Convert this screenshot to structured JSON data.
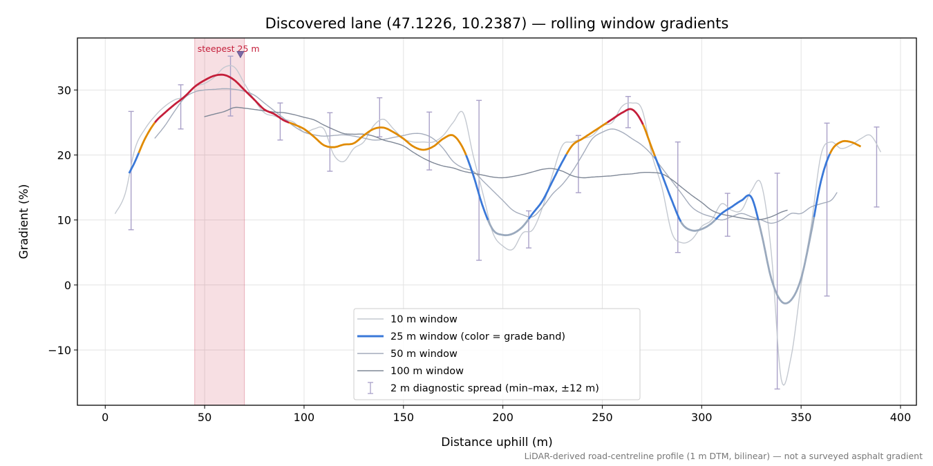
{
  "chart_data": {
    "type": "line",
    "title": "Discovered lane (47.1226, 10.2387) — rolling window gradients",
    "xlabel": "Distance uphill (m)",
    "ylabel": "Gradient (%)",
    "xlim": [
      -14,
      408
    ],
    "ylim": [
      -18.5,
      38
    ],
    "xticks": [
      0,
      50,
      100,
      150,
      200,
      250,
      300,
      350,
      400
    ],
    "yticks": [
      -10,
      0,
      10,
      20,
      30
    ],
    "xtick_labels": [
      "0",
      "50",
      "100",
      "150",
      "200",
      "250",
      "300",
      "350",
      "400"
    ],
    "ytick_labels": [
      "−10",
      "0",
      "10",
      "20",
      "30"
    ],
    "grid": true,
    "legend_position": "lower center",
    "footnote": "LiDAR-derived road-centreline profile (1 m DTM, bilinear) — not a surveyed asphalt gradient",
    "highlight": {
      "x_start": 45,
      "x_end": 70,
      "label": "steepest 25 m",
      "marker_x": 68,
      "marker_y": 35.5
    },
    "grade_bands": [
      {
        "min": 0,
        "max": 10,
        "color": "#9aa9bd"
      },
      {
        "min": 10,
        "max": 20,
        "color": "#3a78d8"
      },
      {
        "min": 20,
        "max": 25,
        "color": "#e08a00"
      },
      {
        "min": 25,
        "max": 100,
        "color": "#c41e3a"
      }
    ],
    "series": [
      {
        "name": "10 m window",
        "color": "#c3c8d0",
        "width": 1.4,
        "x": [
          5,
          10,
          15,
          20,
          25,
          30,
          35,
          40,
          45,
          50,
          55,
          60,
          65,
          70,
          75,
          80,
          85,
          90,
          95,
          100,
          105,
          110,
          115,
          120,
          125,
          130,
          135,
          140,
          145,
          150,
          155,
          160,
          165,
          170,
          175,
          180,
          185,
          190,
          195,
          200,
          205,
          210,
          215,
          220,
          225,
          230,
          235,
          240,
          245,
          250,
          255,
          260,
          265,
          270,
          275,
          280,
          285,
          290,
          295,
          300,
          305,
          310,
          315,
          320,
          325,
          330,
          335,
          340,
          345,
          350,
          355,
          360,
          365,
          370,
          375,
          380,
          385,
          390
        ],
        "y": [
          11,
          14,
          21,
          24,
          26,
          27.5,
          28.5,
          29,
          30.5,
          31,
          32,
          33.5,
          33.5,
          31,
          28.5,
          26.5,
          26,
          25.5,
          25,
          23.5,
          24,
          24,
          20,
          19,
          21,
          22,
          24.5,
          25.5,
          24,
          22.5,
          22,
          22,
          22,
          23,
          25,
          26.5,
          20,
          14,
          8,
          6,
          5.5,
          8,
          8.5,
          12,
          17,
          21.5,
          22,
          22.5,
          23,
          24.5,
          25,
          27.5,
          28,
          27,
          20,
          15,
          8,
          6.5,
          7,
          9,
          10,
          12.5,
          11.5,
          11.5,
          14.5,
          15.5,
          5,
          -14.5,
          -11,
          0,
          9,
          20,
          22,
          21,
          21.5,
          22.5,
          23,
          20.5
        ]
      },
      {
        "name": "25 m window (color = grade band)",
        "color": "#3a78d8",
        "width": 2.8,
        "x": [
          12,
          15,
          20,
          25,
          30,
          35,
          40,
          45,
          50,
          55,
          60,
          65,
          70,
          75,
          80,
          85,
          90,
          95,
          100,
          105,
          110,
          115,
          120,
          125,
          130,
          135,
          140,
          145,
          150,
          155,
          160,
          165,
          170,
          175,
          180,
          185,
          190,
          195,
          200,
          205,
          210,
          215,
          220,
          225,
          230,
          235,
          240,
          245,
          250,
          255,
          260,
          265,
          270,
          275,
          280,
          285,
          290,
          295,
          300,
          305,
          310,
          315,
          320,
          325,
          330,
          335,
          340,
          345,
          350,
          355,
          360,
          365,
          370,
          375,
          380
        ],
        "y": [
          17.2,
          19,
          22.5,
          25,
          26.5,
          27.8,
          29,
          30.5,
          31.5,
          32.2,
          32.3,
          31.5,
          30,
          28.5,
          27,
          26.3,
          25.3,
          24.7,
          24,
          22.8,
          21.5,
          21.2,
          21.6,
          21.8,
          23,
          24,
          24.2,
          23.5,
          22.5,
          21.3,
          20.8,
          21.3,
          22.5,
          23,
          21,
          17,
          12,
          8.5,
          7.7,
          7.9,
          9,
          11,
          13,
          16,
          19,
          21.5,
          22.5,
          23.5,
          24.5,
          25.5,
          26.5,
          27,
          25,
          21,
          17,
          13,
          9.5,
          8.4,
          8.6,
          9.5,
          11,
          12,
          13,
          13.5,
          8,
          1,
          -2.5,
          -2.3,
          1,
          8,
          16,
          20.5,
          22,
          22,
          21.3
        ]
      },
      {
        "name": "50 m window",
        "color": "#a4acbc",
        "width": 1.4,
        "x": [
          25,
          30,
          35,
          40,
          45,
          50,
          55,
          60,
          65,
          70,
          75,
          80,
          85,
          90,
          95,
          100,
          105,
          110,
          115,
          120,
          125,
          130,
          135,
          140,
          145,
          150,
          155,
          160,
          165,
          170,
          175,
          180,
          185,
          190,
          195,
          200,
          205,
          210,
          215,
          220,
          225,
          230,
          235,
          240,
          245,
          250,
          255,
          260,
          265,
          270,
          275,
          280,
          285,
          290,
          295,
          300,
          305,
          310,
          315,
          320,
          325,
          330,
          335,
          340,
          345,
          350,
          355,
          360,
          365,
          368
        ],
        "y": [
          22.6,
          24.5,
          26.8,
          28.8,
          29.7,
          30,
          30.1,
          30.2,
          30.1,
          29.8,
          29.2,
          28,
          26.8,
          25.6,
          24.4,
          23.5,
          23.1,
          22.9,
          23,
          23.1,
          22.9,
          22.6,
          22.3,
          22.4,
          22.7,
          23,
          23.3,
          23.2,
          22.5,
          21,
          19,
          18,
          17.5,
          16,
          14.5,
          13,
          11.5,
          10.8,
          10.5,
          12,
          14,
          15.5,
          17.5,
          20,
          22.5,
          23.5,
          24,
          23.5,
          22.5,
          21.5,
          20,
          18,
          16,
          14,
          12,
          11,
          10.5,
          10,
          10.5,
          11,
          10.5,
          10,
          9.5,
          10,
          11,
          11,
          12,
          12.5,
          13,
          14.2
        ]
      },
      {
        "name": "100 m window",
        "color": "#7e8796",
        "width": 1.4,
        "x": [
          50,
          55,
          60,
          65,
          70,
          75,
          80,
          85,
          90,
          95,
          100,
          105,
          110,
          115,
          120,
          125,
          130,
          135,
          140,
          145,
          150,
          155,
          160,
          165,
          170,
          175,
          180,
          185,
          190,
          195,
          200,
          205,
          210,
          215,
          220,
          225,
          230,
          235,
          240,
          245,
          250,
          255,
          260,
          265,
          270,
          275,
          280,
          285,
          290,
          295,
          300,
          305,
          310,
          315,
          320,
          325,
          330,
          335,
          340,
          343
        ],
        "y": [
          25.9,
          26.3,
          26.7,
          27.3,
          27.2,
          27,
          26.8,
          26.6,
          26.5,
          26.2,
          25.8,
          25.4,
          24.6,
          23.9,
          23.3,
          23.2,
          23.2,
          22.9,
          22.3,
          21.9,
          21.4,
          20.4,
          19.5,
          18.8,
          18.3,
          18,
          17.5,
          17.2,
          16.9,
          16.6,
          16.5,
          16.7,
          17,
          17.4,
          17.8,
          17.9,
          17.5,
          16.8,
          16.5,
          16.6,
          16.7,
          16.8,
          17,
          17.1,
          17.3,
          17.3,
          17.1,
          16.2,
          15,
          13.8,
          12.7,
          11.5,
          10.9,
          10.6,
          10.3,
          10.1,
          10.1,
          10.5,
          11.2,
          11.5
        ]
      }
    ],
    "diagnostic": {
      "name": "2 m diagnostic spread (min–max, ±12 m)",
      "color": "#a9a0c8",
      "x": [
        13,
        38,
        63,
        88,
        113,
        138,
        163,
        188,
        213,
        238,
        263,
        288,
        313,
        338,
        363,
        388
      ],
      "low": [
        8.5,
        24,
        26,
        22.3,
        17.5,
        22.8,
        17.7,
        3.8,
        5.7,
        14.2,
        24.2,
        5,
        7.5,
        -16,
        -1.7,
        12
      ],
      "high": [
        26.7,
        30.8,
        35.2,
        28,
        26.5,
        28.8,
        26.6,
        28.4,
        11.4,
        23,
        29,
        22,
        14.1,
        17.2,
        24.9,
        24.3
      ]
    }
  }
}
